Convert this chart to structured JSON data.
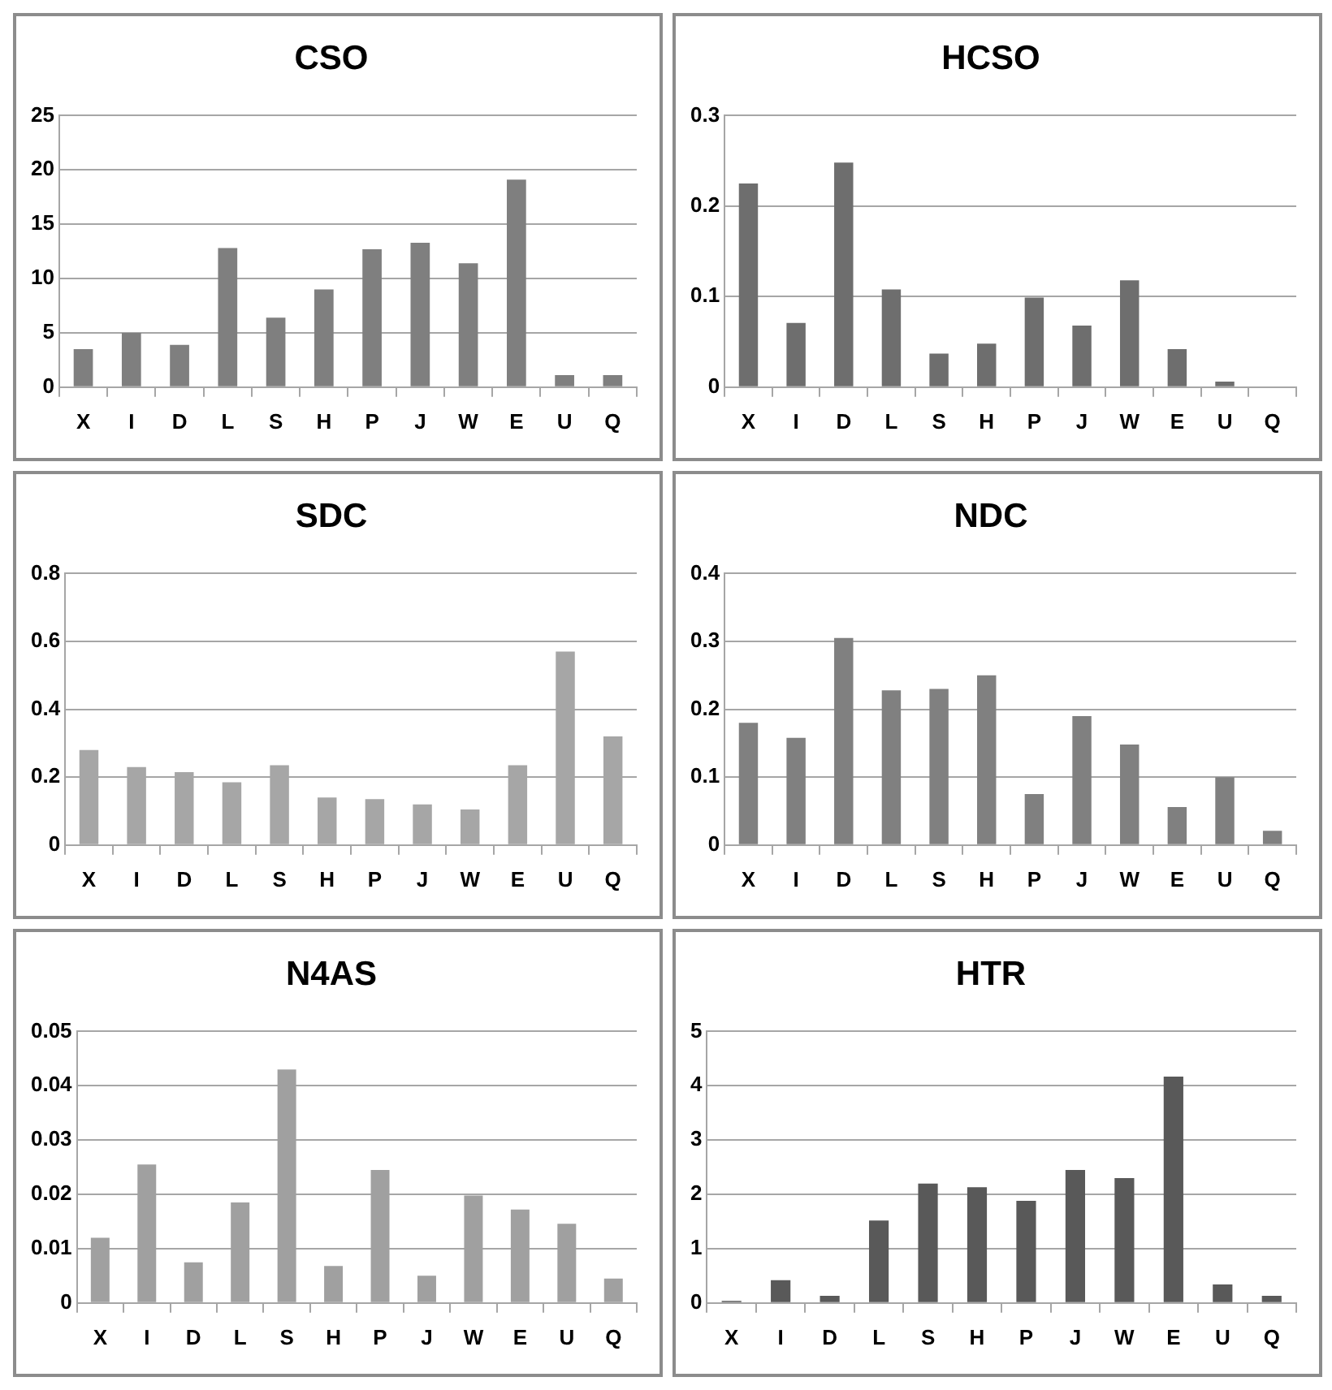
{
  "chart_data": [
    {
      "type": "bar",
      "title": "CSO",
      "categories": [
        "X",
        "I",
        "D",
        "L",
        "S",
        "H",
        "P",
        "J",
        "W",
        "E",
        "U",
        "Q"
      ],
      "values": [
        3.5,
        5.0,
        3.9,
        12.8,
        6.4,
        9.0,
        12.7,
        13.3,
        11.4,
        19.1,
        1.1,
        1.1
      ],
      "color": "#7f7f7f",
      "ylim": [
        0,
        25
      ],
      "yticks": [
        0,
        5,
        10,
        15,
        20,
        25
      ],
      "grid": "y",
      "legend": false
    },
    {
      "type": "bar",
      "title": "HCSO",
      "categories": [
        "X",
        "I",
        "D",
        "L",
        "S",
        "H",
        "P",
        "J",
        "W",
        "E",
        "U",
        "Q"
      ],
      "values": [
        0.225,
        0.071,
        0.248,
        0.108,
        0.037,
        0.048,
        0.099,
        0.068,
        0.118,
        0.042,
        0.006,
        0.001
      ],
      "color": "#6e6e6e",
      "ylim": [
        0,
        0.3
      ],
      "yticks": [
        0,
        0.1,
        0.2,
        0.3
      ],
      "grid": "y",
      "legend": false
    },
    {
      "type": "bar",
      "title": "SDC",
      "categories": [
        "X",
        "I",
        "D",
        "L",
        "S",
        "H",
        "P",
        "J",
        "W",
        "E",
        "U",
        "Q"
      ],
      "values": [
        0.28,
        0.23,
        0.215,
        0.185,
        0.235,
        0.14,
        0.135,
        0.12,
        0.105,
        0.235,
        0.57,
        0.32
      ],
      "color": "#a6a6a6",
      "ylim": [
        0,
        0.8
      ],
      "yticks": [
        0,
        0.2,
        0.4,
        0.6,
        0.8
      ],
      "grid": "y",
      "legend": false
    },
    {
      "type": "bar",
      "title": "NDC",
      "categories": [
        "X",
        "I",
        "D",
        "L",
        "S",
        "H",
        "P",
        "J",
        "W",
        "E",
        "U",
        "Q"
      ],
      "values": [
        0.18,
        0.158,
        0.305,
        0.228,
        0.23,
        0.25,
        0.075,
        0.19,
        0.148,
        0.056,
        0.1,
        0.021
      ],
      "color": "#808080",
      "ylim": [
        0,
        0.4
      ],
      "yticks": [
        0,
        0.1,
        0.2,
        0.3,
        0.4
      ],
      "grid": "y",
      "legend": false
    },
    {
      "type": "bar",
      "title": "N4AS",
      "categories": [
        "X",
        "I",
        "D",
        "L",
        "S",
        "H",
        "P",
        "J",
        "W",
        "E",
        "U",
        "Q"
      ],
      "values": [
        0.012,
        0.0255,
        0.0075,
        0.0185,
        0.043,
        0.0068,
        0.0245,
        0.005,
        0.0198,
        0.0172,
        0.0146,
        0.0045
      ],
      "color": "#a0a0a0",
      "ylim": [
        0,
        0.05
      ],
      "yticks": [
        0,
        0.01,
        0.02,
        0.03,
        0.04,
        0.05
      ],
      "grid": "y",
      "legend": false
    },
    {
      "type": "bar",
      "title": "HTR",
      "categories": [
        "X",
        "I",
        "D",
        "L",
        "S",
        "H",
        "P",
        "J",
        "W",
        "E",
        "U",
        "Q"
      ],
      "values": [
        0.04,
        0.42,
        0.13,
        1.52,
        2.2,
        2.13,
        1.88,
        2.45,
        2.3,
        4.17,
        0.34,
        0.13
      ],
      "color": "#595959",
      "ylim": [
        0,
        5
      ],
      "yticks": [
        0,
        1,
        2,
        3,
        4,
        5
      ],
      "grid": "y",
      "legend": false
    }
  ]
}
